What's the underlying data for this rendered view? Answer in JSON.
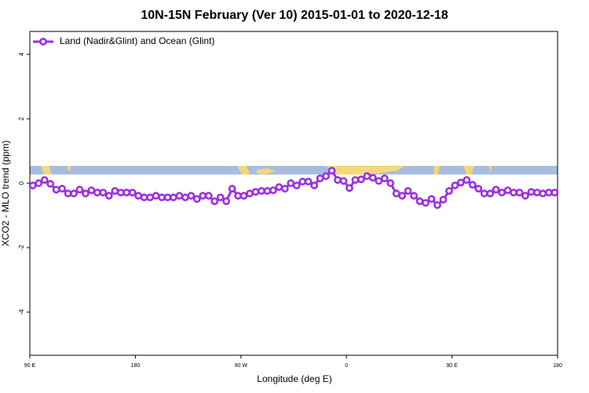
{
  "chart_data": {
    "type": "line",
    "title": "10N-15N February (Ver 10)   2015-01-01 to 2020-12-18",
    "x_label": "Longitude (deg E)",
    "y_label": "XCO2 - MLO trend (ppm)",
    "legend_position": "top-left",
    "xlim": [
      90,
      540
    ],
    "ylim": [
      -5.34,
      4.71
    ],
    "xticks": [
      {
        "value": 90,
        "label": "90 E"
      },
      {
        "value": 180,
        "label": "180"
      },
      {
        "value": 270,
        "label": "90 W"
      },
      {
        "value": 360,
        "label": "0"
      },
      {
        "value": 450,
        "label": "90 E"
      },
      {
        "value": 540,
        "label": "180"
      }
    ],
    "yticks": [
      -4,
      -2,
      0,
      2,
      4
    ],
    "x": [
      92.5,
      97.5,
      102.5,
      107.5,
      112.5,
      117.5,
      122.5,
      127.5,
      132.5,
      137.5,
      142.5,
      147.5,
      152.5,
      157.5,
      162.5,
      167.5,
      172.5,
      177.5,
      182.5,
      187.5,
      192.5,
      197.5,
      202.5,
      207.5,
      212.5,
      217.5,
      222.5,
      227.5,
      232.5,
      237.5,
      242.5,
      247.5,
      252.5,
      257.5,
      262.5,
      267.5,
      272.5,
      277.5,
      282.5,
      287.5,
      292.5,
      297.5,
      302.5,
      307.5,
      312.5,
      317.5,
      322.5,
      327.5,
      332.5,
      337.5,
      342.5,
      347.5,
      352.5,
      357.5,
      362.5,
      367.5,
      372.5,
      377.5,
      382.5,
      387.5,
      392.5,
      397.5,
      402.5,
      407.5,
      412.5,
      417.5,
      422.5,
      427.5,
      432.5,
      437.5,
      442.5,
      447.5,
      452.5,
      457.5,
      462.5,
      467.5,
      472.5,
      477.5,
      482.5,
      487.5,
      492.5,
      497.5,
      502.5,
      507.5,
      512.5,
      517.5,
      522.5,
      527.5,
      532.5,
      537.5
    ],
    "series": [
      {
        "name": "Land (Nadir&Glint) and Ocean (Glint)",
        "color": "#9b30e0",
        "values": [
          -0.07,
          0,
          0.1,
          -0.02,
          -0.2,
          -0.17,
          -0.32,
          -0.32,
          -0.2,
          -0.32,
          -0.22,
          -0.29,
          -0.29,
          -0.39,
          -0.24,
          -0.29,
          -0.29,
          -0.29,
          -0.39,
          -0.44,
          -0.44,
          -0.39,
          -0.44,
          -0.44,
          -0.44,
          -0.39,
          -0.44,
          -0.39,
          -0.49,
          -0.39,
          -0.39,
          -0.56,
          -0.44,
          -0.56,
          -0.17,
          -0.39,
          -0.39,
          -0.32,
          -0.27,
          -0.24,
          -0.24,
          -0.22,
          -0.12,
          -0.17,
          0,
          -0.07,
          0.05,
          0.05,
          -0.07,
          0.15,
          0.22,
          0.39,
          0.1,
          0.07,
          -0.15,
          0.1,
          0.12,
          0.22,
          0.17,
          0.07,
          0.15,
          0,
          -0.32,
          -0.39,
          -0.24,
          -0.39,
          -0.56,
          -0.61,
          -0.49,
          -0.68,
          -0.51,
          -0.24,
          -0.07,
          0.02,
          0.1,
          -0.05,
          -0.17,
          -0.32,
          -0.32,
          -0.2,
          -0.29,
          -0.22,
          -0.29,
          -0.29,
          -0.39,
          -0.27,
          -0.29,
          -0.32,
          -0.29,
          -0.29
        ]
      }
    ]
  }
}
